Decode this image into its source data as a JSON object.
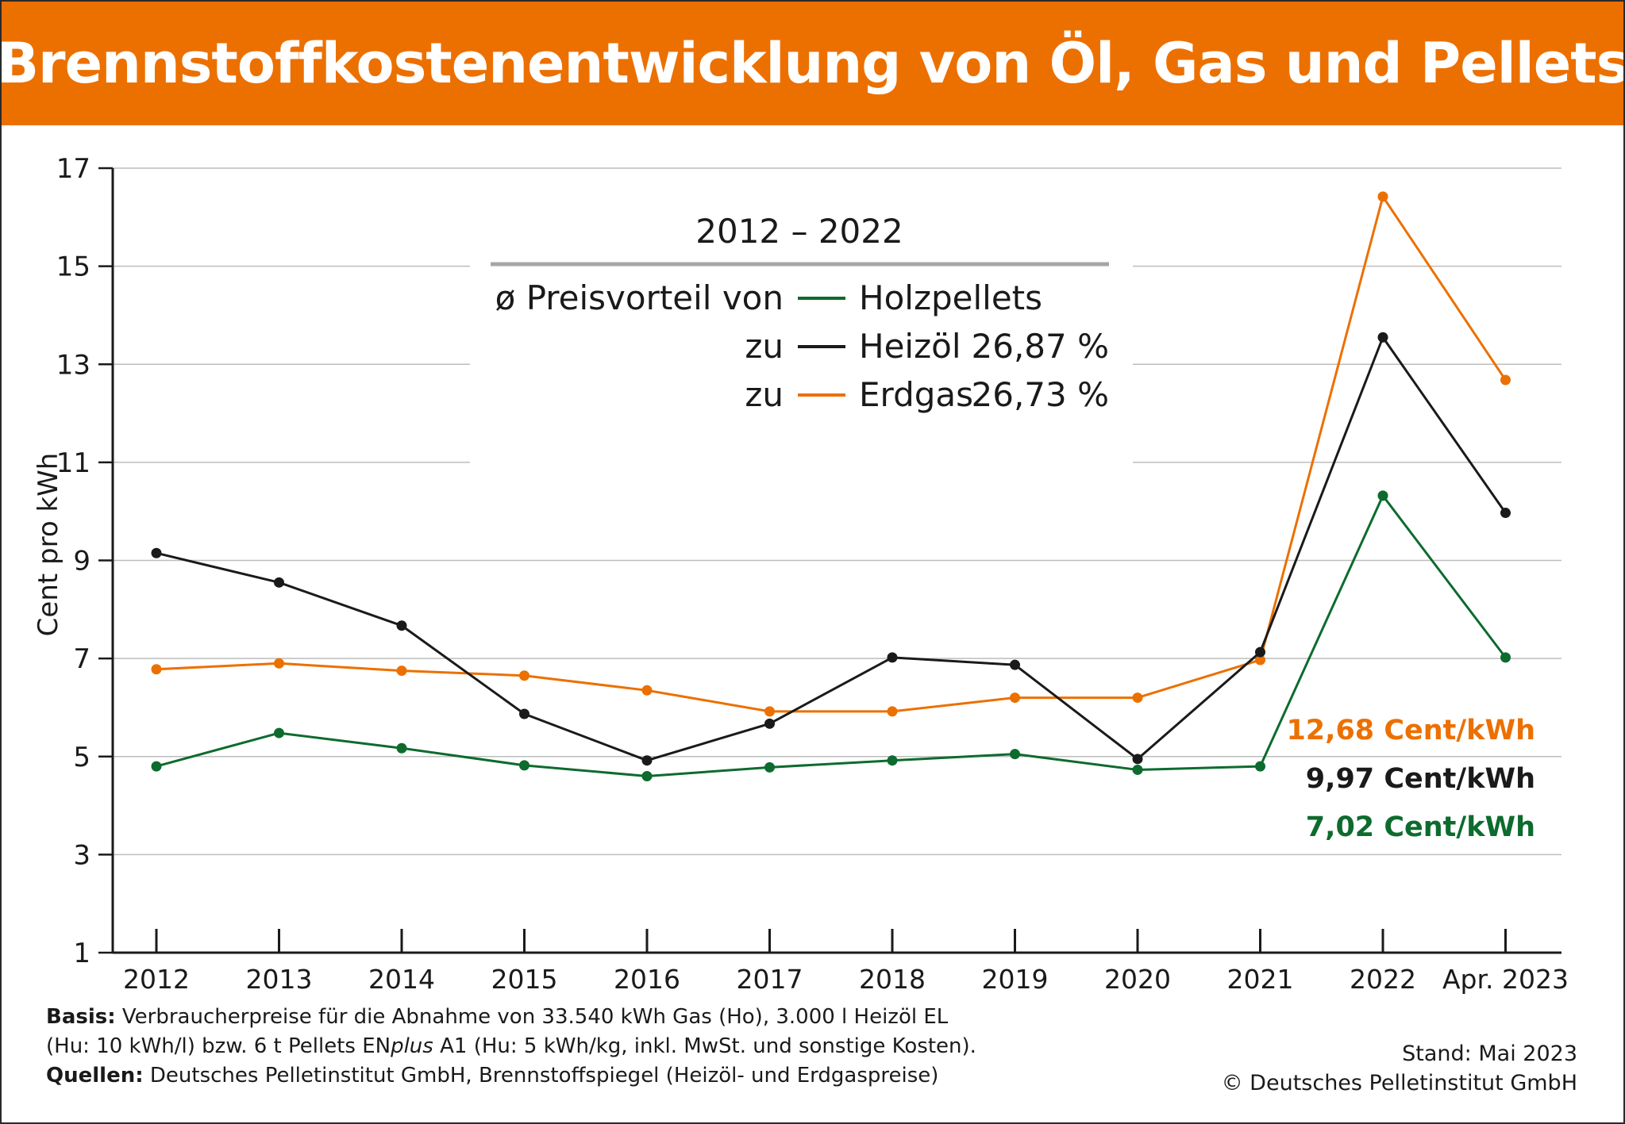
{
  "header": {
    "title": "Brennstoffkostenentwicklung von Öl, Gas und Pellets"
  },
  "colors": {
    "accent": "#ec7000",
    "pellets": "#0d6b2e",
    "heizoel": "#1a1a1a",
    "erdgas": "#ec7000",
    "grid": "#bdbdbd"
  },
  "chart_data": {
    "type": "line",
    "ylabel": "Cent pro kWh",
    "ylim": [
      1,
      17
    ],
    "yticks": [
      1,
      3,
      5,
      7,
      9,
      11,
      13,
      15,
      17
    ],
    "categories": [
      "2012",
      "2013",
      "2014",
      "2015",
      "2016",
      "2017",
      "2018",
      "2019",
      "2020",
      "2021",
      "2022",
      "Apr. 2023"
    ],
    "grid": true,
    "series": [
      {
        "key": "erdgas",
        "color": "#ec7000",
        "values": [
          6.78,
          6.9,
          6.75,
          6.65,
          6.35,
          5.92,
          5.92,
          6.2,
          6.2,
          6.97,
          16.42,
          12.68
        ]
      },
      {
        "key": "heizoel",
        "color": "#1a1a1a",
        "values": [
          9.15,
          8.55,
          7.67,
          5.87,
          4.92,
          5.67,
          7.02,
          6.87,
          4.95,
          7.13,
          13.55,
          9.97
        ]
      },
      {
        "key": "pellets",
        "color": "#0d6b2e",
        "values": [
          4.8,
          5.48,
          5.17,
          4.82,
          4.6,
          4.78,
          4.92,
          5.05,
          4.73,
          4.8,
          10.32,
          7.02
        ]
      }
    ],
    "legend": {
      "position": "top-center",
      "period": "2012 – 2022",
      "lead": "ø Preisvorteil von",
      "rows": [
        {
          "prefix": "",
          "label": "Holzpellets",
          "value": "",
          "color": "#0d6b2e"
        },
        {
          "prefix": "zu",
          "label": "Heizöl",
          "value": "26,87 %",
          "color": "#1a1a1a"
        },
        {
          "prefix": "zu",
          "label": "Erdgas",
          "value": "26,73 %",
          "color": "#ec7000"
        }
      ]
    },
    "end_labels": [
      {
        "text": "12,68 Cent/kWh",
        "color": "#ec7000"
      },
      {
        "text": "9,97 Cent/kWh",
        "color": "#1a1a1a"
      },
      {
        "text": "7,02 Cent/kWh",
        "color": "#0d6b2e"
      }
    ]
  },
  "footer": {
    "basis_label": "Basis:",
    "basis_line1": "Verbraucherpreise für die Abnahme von 33.540 kWh Gas (Ho), 3.000 l Heizöl EL",
    "basis_line2a": "(Hu: 10 kWh/l) bzw. 6 t Pellets EN",
    "basis_line2_italic": "plus",
    "basis_line2b": " A1 (Hu: 5 kWh/kg, inkl. MwSt. und sonstige Kosten).",
    "quellen_label": "Quellen:",
    "quellen_text": "Deutsches Pelletinstitut GmbH, Brennstoffspiegel (Heizöl- und Erdgaspreise)",
    "stand": "Stand: Mai 2023",
    "copyright": "© Deutsches Pelletinstitut GmbH"
  }
}
